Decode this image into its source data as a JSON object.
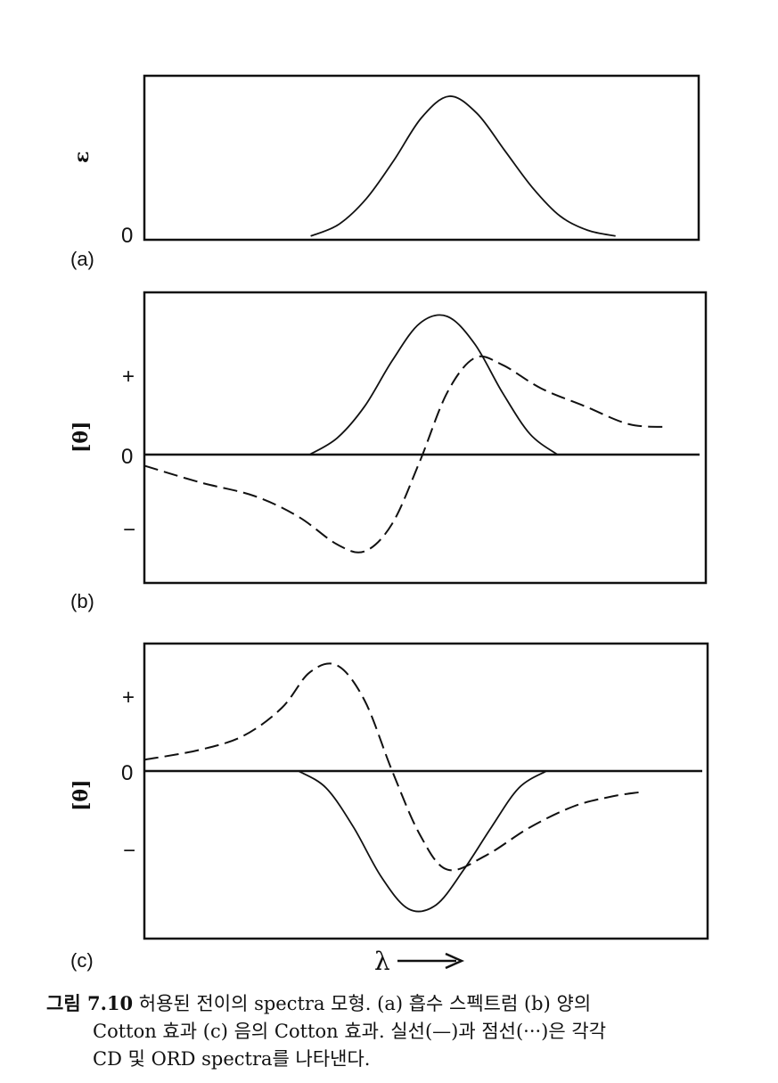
{
  "chart_data": [
    {
      "type": "line",
      "panel_label": "(a)",
      "ylabel": "ε",
      "yticks": [
        "0"
      ],
      "series": [
        {
          "style": "solid",
          "x": [
            0.3,
            0.35,
            0.4,
            0.45,
            0.5,
            0.55,
            0.6,
            0.65,
            0.7,
            0.75,
            0.8,
            0.85
          ],
          "y": [
            0.02,
            0.1,
            0.28,
            0.55,
            0.85,
            1.0,
            0.88,
            0.62,
            0.36,
            0.16,
            0.06,
            0.02
          ]
        }
      ]
    },
    {
      "type": "line",
      "panel_label": "(b)",
      "ylabel": "[θ]",
      "yticks": [
        "+",
        "0",
        "−"
      ],
      "series": [
        {
          "style": "solid",
          "x": [
            0.3,
            0.35,
            0.4,
            0.45,
            0.5,
            0.55,
            0.6,
            0.65,
            0.7,
            0.75
          ],
          "y": [
            0.0,
            0.12,
            0.35,
            0.68,
            0.95,
            1.0,
            0.8,
            0.45,
            0.15,
            0.0
          ]
        },
        {
          "style": "dashed",
          "x": [
            0.0,
            0.1,
            0.2,
            0.28,
            0.35,
            0.4,
            0.45,
            0.5,
            0.55,
            0.6,
            0.65,
            0.72,
            0.8,
            0.88,
            0.95
          ],
          "y": [
            -0.08,
            -0.2,
            -0.3,
            -0.45,
            -0.65,
            -0.7,
            -0.5,
            -0.05,
            0.45,
            0.7,
            0.65,
            0.48,
            0.35,
            0.22,
            0.2
          ]
        }
      ]
    },
    {
      "type": "line",
      "panel_label": "(c)",
      "ylabel": "[θ]",
      "yticks": [
        "+",
        "0",
        "−"
      ],
      "series": [
        {
          "style": "solid",
          "x": [
            0.28,
            0.33,
            0.38,
            0.43,
            0.48,
            0.53,
            0.58,
            0.63,
            0.68,
            0.73
          ],
          "y": [
            0.0,
            -0.12,
            -0.4,
            -0.75,
            -0.98,
            -0.95,
            -0.7,
            -0.4,
            -0.12,
            0.0
          ]
        },
        {
          "style": "dashed",
          "x": [
            0.0,
            0.1,
            0.18,
            0.25,
            0.3,
            0.35,
            0.4,
            0.45,
            0.5,
            0.55,
            0.62,
            0.7,
            0.78,
            0.85,
            0.9
          ],
          "y": [
            0.08,
            0.15,
            0.25,
            0.45,
            0.7,
            0.75,
            0.5,
            0.0,
            -0.45,
            -0.7,
            -0.6,
            -0.4,
            -0.25,
            -0.18,
            -0.15
          ]
        }
      ]
    }
  ],
  "xaxis_label": "λ",
  "caption": {
    "fig_number": "그림 7.10",
    "line1": "허용된 전이의 spectra 모형. (a) 흡수 스펙트럼 (b) 양의",
    "line2": "Cotton 효과 (c) 음의 Cotton 효과. 실선(—)과 점선(···)은 각각",
    "line3": "CD 및 ORD spectra를 나타낸다."
  }
}
